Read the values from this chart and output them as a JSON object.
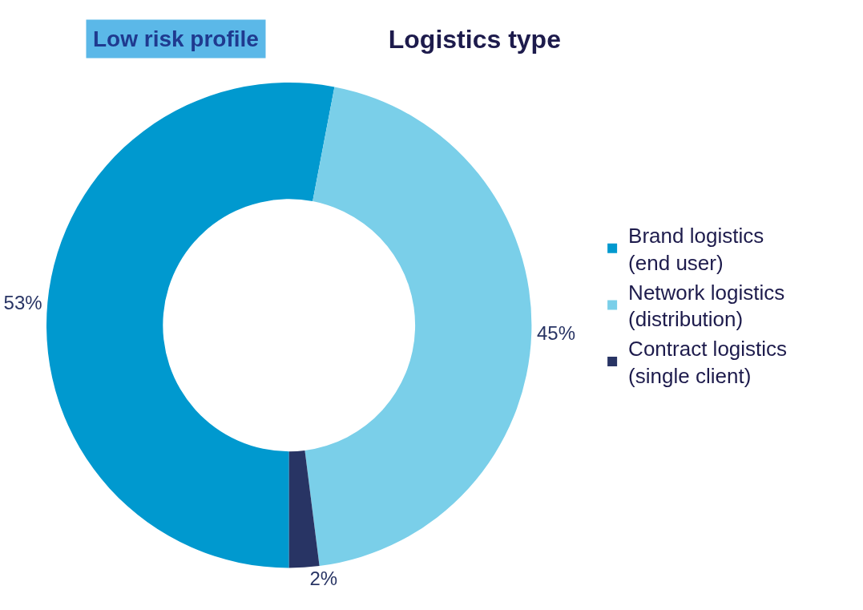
{
  "chart_data": {
    "type": "donut",
    "title": "Logistics type",
    "categories": [
      "Brand logistics (end user)",
      "Network logistics (distribution)",
      "Contract logistics (single client)"
    ],
    "values": [
      53,
      45,
      2
    ],
    "colors": [
      "#0099cf",
      "#7acfe9",
      "#283464"
    ],
    "legend": "right",
    "value_labels": [
      "53%",
      "45%",
      "2%"
    ],
    "annotations": [
      "Low risk profile"
    ]
  }
}
